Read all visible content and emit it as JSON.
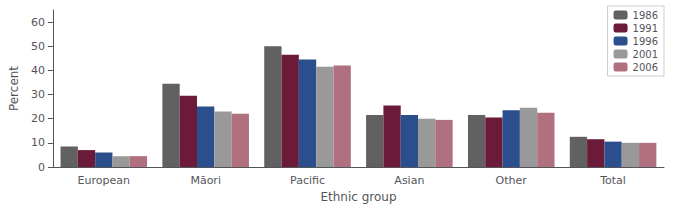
{
  "chart_data": {
    "type": "bar",
    "xlabel": "Ethnic group",
    "ylabel": "Percent",
    "categories": [
      "European",
      "Māori",
      "Pacific",
      "Asian",
      "Other",
      "Total"
    ],
    "series": [
      {
        "name": "1986",
        "color": "#616161",
        "values": [
          8.5,
          34.5,
          50.0,
          21.5,
          21.5,
          12.5
        ]
      },
      {
        "name": "1991",
        "color": "#6b1a3a",
        "values": [
          7.0,
          29.5,
          46.5,
          25.5,
          20.5,
          11.5
        ]
      },
      {
        "name": "1996",
        "color": "#2b4f8c",
        "values": [
          6.0,
          25.0,
          44.5,
          21.5,
          23.5,
          10.5
        ]
      },
      {
        "name": "2001",
        "color": "#999999",
        "values": [
          4.5,
          23.0,
          41.5,
          20.0,
          24.5,
          10.0
        ]
      },
      {
        "name": "2006",
        "color": "#b07080",
        "values": [
          4.5,
          22.0,
          42.0,
          19.5,
          22.5,
          10.0
        ]
      }
    ],
    "ylim": [
      0,
      65
    ],
    "yticks": [
      0,
      10,
      20,
      30,
      40,
      50,
      60
    ],
    "grid": false,
    "legend": "upper right"
  }
}
